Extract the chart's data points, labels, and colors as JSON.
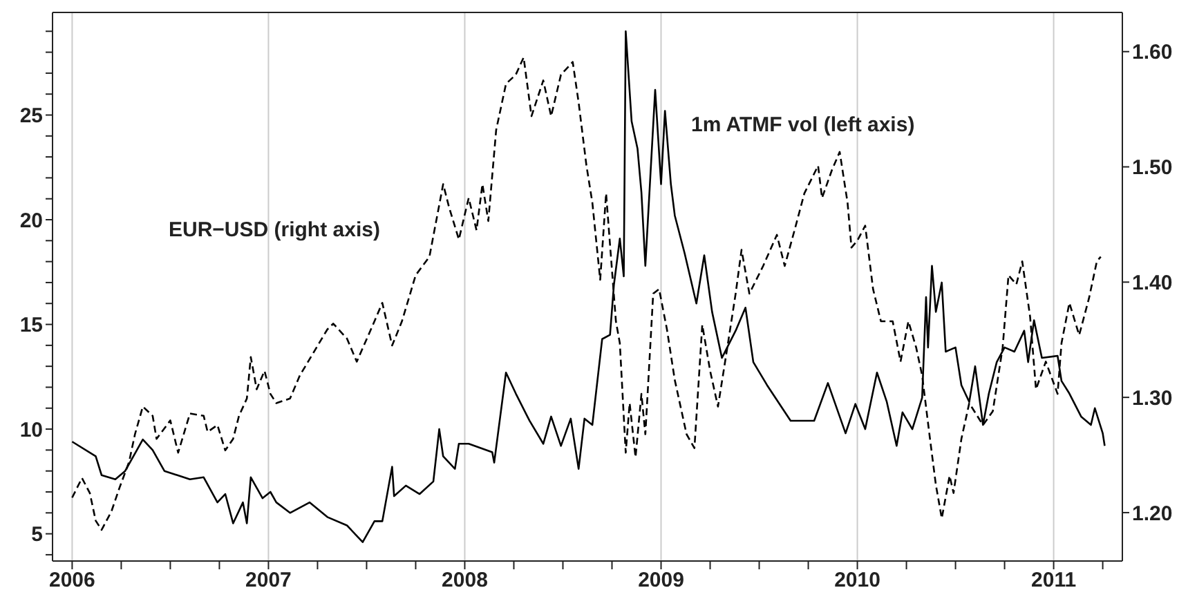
{
  "chart_data": {
    "type": "line",
    "xlim": [
      2005.9,
      2011.35
    ],
    "ylim": [
      3.7,
      29.9
    ],
    "y2lim": [
      1.158,
      1.634
    ],
    "xticks": [
      2006,
      {
        "value": 2006.25,
        "label": null
      },
      {
        "value": 2006.5,
        "label": null
      },
      {
        "value": 2006.75,
        "label": null
      },
      2007,
      {
        "value": 2007.25,
        "label": null
      },
      {
        "value": 2007.5,
        "label": null
      },
      {
        "value": 2007.75,
        "label": null
      },
      2008,
      {
        "value": 2008.25,
        "label": null
      },
      {
        "value": 2008.5,
        "label": null
      },
      {
        "value": 2008.75,
        "label": null
      },
      2009,
      {
        "value": 2009.25,
        "label": null
      },
      {
        "value": 2009.5,
        "label": null
      },
      {
        "value": 2009.75,
        "label": null
      },
      2010,
      {
        "value": 2010.25,
        "label": null
      },
      {
        "value": 2010.5,
        "label": null
      },
      {
        "value": 2010.75,
        "label": null
      },
      2011,
      {
        "value": 2011.25,
        "label": null
      }
    ],
    "yticks": [
      {
        "value": 4,
        "label": null
      },
      5,
      {
        "value": 6,
        "label": null
      },
      {
        "value": 7,
        "label": null
      },
      {
        "value": 8,
        "label": null
      },
      {
        "value": 9,
        "label": null
      },
      10,
      {
        "value": 11,
        "label": null
      },
      {
        "value": 12,
        "label": null
      },
      {
        "value": 13,
        "label": null
      },
      {
        "value": 14,
        "label": null
      },
      15,
      {
        "value": 16,
        "label": null
      },
      {
        "value": 17,
        "label": null
      },
      {
        "value": 18,
        "label": null
      },
      {
        "value": 19,
        "label": null
      },
      20,
      {
        "value": 21,
        "label": null
      },
      {
        "value": 22,
        "label": null
      },
      {
        "value": 23,
        "label": null
      },
      {
        "value": 24,
        "label": null
      },
      25,
      {
        "value": 26,
        "label": null
      },
      {
        "value": 27,
        "label": null
      },
      {
        "value": 28,
        "label": null
      },
      {
        "value": 29,
        "label": null
      }
    ],
    "y2ticks": [
      {
        "value": 1.2,
        "label": "1.20"
      },
      {
        "value": 1.3,
        "label": "1.30"
      },
      {
        "value": 1.4,
        "label": "1.40"
      },
      {
        "value": 1.5,
        "label": "1.50"
      },
      {
        "value": 1.6,
        "label": "1.60"
      }
    ],
    "grid": "x",
    "marker": "none",
    "series": [
      {
        "name": "1m ATMF vol (left axis)",
        "color": "#000000",
        "line_style": "solid",
        "x": [
          2006.0,
          2006.12,
          2006.15,
          2006.22,
          2006.27,
          2006.36,
          2006.41,
          2006.47,
          2006.6,
          2006.67,
          2006.74,
          2006.78,
          2006.82,
          2006.87,
          2006.89,
          2006.91,
          2006.97,
          2007.01,
          2007.04,
          2007.11,
          2007.21,
          2007.3,
          2007.4,
          2007.48,
          2007.54,
          2007.58,
          2007.63,
          2007.64,
          2007.7,
          2007.77,
          2007.84,
          2007.87,
          2007.89,
          2007.95,
          2007.97,
          2008.02,
          2008.14,
          2008.15,
          2008.21,
          2008.26,
          2008.33,
          2008.4,
          2008.44,
          2008.49,
          2008.54,
          2008.58,
          2008.61,
          2008.65,
          2008.7,
          2008.74,
          2008.76,
          2008.79,
          2008.81,
          2008.82,
          2008.85,
          2008.88,
          2008.9,
          2008.92,
          2008.97,
          2009.0,
          2009.02,
          2009.05,
          2009.07,
          2009.12,
          2009.18,
          2009.22,
          2009.26,
          2009.31,
          2009.38,
          2009.43,
          2009.47,
          2009.54,
          2009.66,
          2009.78,
          2009.85,
          2009.94,
          2009.99,
          2010.04,
          2010.1,
          2010.15,
          2010.2,
          2010.23,
          2010.28,
          2010.33,
          2010.35,
          2010.36,
          2010.38,
          2010.4,
          2010.43,
          2010.45,
          2010.5,
          2010.53,
          2010.57,
          2010.6,
          2010.64,
          2010.67,
          2010.71,
          2010.75,
          2010.8,
          2010.85,
          2010.87,
          2010.9,
          2010.94,
          2011.02,
          2011.04,
          2011.08,
          2011.14,
          2011.19,
          2011.21,
          2011.25,
          2011.26
        ],
        "values": [
          9.4,
          8.7,
          7.8,
          7.6,
          8.0,
          9.5,
          9.0,
          8.0,
          7.6,
          7.7,
          6.5,
          6.9,
          5.5,
          6.5,
          5.5,
          7.7,
          6.7,
          7.0,
          6.5,
          6.0,
          6.5,
          5.8,
          5.4,
          4.6,
          5.6,
          5.6,
          8.2,
          6.8,
          7.3,
          6.9,
          7.5,
          10.0,
          8.7,
          8.1,
          9.3,
          9.3,
          8.9,
          8.4,
          12.7,
          11.7,
          10.4,
          9.3,
          10.6,
          9.2,
          10.5,
          8.1,
          10.5,
          10.2,
          14.3,
          14.5,
          16.9,
          19.1,
          17.3,
          29.0,
          24.7,
          23.4,
          21.3,
          17.8,
          26.2,
          21.7,
          25.2,
          21.7,
          20.2,
          18.4,
          16.0,
          18.3,
          15.6,
          13.4,
          14.7,
          15.8,
          13.2,
          12.1,
          10.4,
          10.4,
          12.2,
          9.8,
          11.2,
          10.0,
          12.7,
          11.3,
          9.2,
          10.8,
          10.0,
          11.5,
          16.3,
          13.9,
          17.8,
          15.6,
          17.0,
          13.7,
          13.9,
          12.1,
          11.3,
          13.0,
          10.2,
          11.7,
          13.2,
          13.9,
          13.7,
          14.7,
          13.2,
          15.2,
          13.4,
          13.5,
          12.3,
          11.7,
          10.6,
          10.2,
          11.0,
          9.8,
          9.2
        ]
      },
      {
        "name": "EUR−USD (right axis)",
        "color": "#000000",
        "line_style": "dashed",
        "axis": "y2",
        "x": [
          2006.0,
          2006.05,
          2006.09,
          2006.12,
          2006.15,
          2006.2,
          2006.24,
          2006.29,
          2006.32,
          2006.36,
          2006.41,
          2006.43,
          2006.5,
          2006.54,
          2006.6,
          2006.67,
          2006.69,
          2006.74,
          2006.78,
          2006.82,
          2006.85,
          2006.89,
          2006.91,
          2006.94,
          2006.98,
          2007.01,
          2007.04,
          2007.11,
          2007.16,
          2007.23,
          2007.3,
          2007.33,
          2007.4,
          2007.45,
          2007.54,
          2007.58,
          2007.63,
          2007.68,
          2007.75,
          2007.82,
          2007.89,
          2007.92,
          2007.97,
          2008.02,
          2008.06,
          2008.09,
          2008.12,
          2008.16,
          2008.21,
          2008.26,
          2008.3,
          2008.34,
          2008.4,
          2008.44,
          2008.49,
          2008.55,
          2008.58,
          2008.62,
          2008.65,
          2008.69,
          2008.72,
          2008.77,
          2008.79,
          2008.82,
          2008.84,
          2008.87,
          2008.9,
          2008.92,
          2008.96,
          2008.99,
          2009.03,
          2009.07,
          2009.13,
          2009.17,
          2009.21,
          2009.25,
          2009.29,
          2009.33,
          2009.38,
          2009.41,
          2009.45,
          2009.52,
          2009.59,
          2009.63,
          2009.68,
          2009.73,
          2009.8,
          2009.82,
          2009.87,
          2009.91,
          2009.95,
          2009.97,
          2010.0,
          2010.04,
          2010.08,
          2010.12,
          2010.18,
          2010.22,
          2010.26,
          2010.3,
          2010.33,
          2010.37,
          2010.4,
          2010.43,
          2010.47,
          2010.49,
          2010.53,
          2010.57,
          2010.64,
          2010.69,
          2010.74,
          2010.77,
          2010.81,
          2010.84,
          2010.88,
          2010.91,
          2010.96,
          2011.02,
          2011.04,
          2011.08,
          2011.13,
          2011.18,
          2011.22,
          2011.24
        ],
        "values": [
          1.213,
          1.23,
          1.217,
          1.193,
          1.185,
          1.201,
          1.221,
          1.244,
          1.268,
          1.292,
          1.284,
          1.264,
          1.28,
          1.252,
          1.286,
          1.284,
          1.27,
          1.276,
          1.254,
          1.264,
          1.284,
          1.299,
          1.335,
          1.307,
          1.323,
          1.303,
          1.295,
          1.299,
          1.319,
          1.339,
          1.359,
          1.364,
          1.351,
          1.331,
          1.366,
          1.382,
          1.345,
          1.366,
          1.406,
          1.422,
          1.485,
          1.465,
          1.437,
          1.473,
          1.445,
          1.485,
          1.453,
          1.532,
          1.572,
          1.58,
          1.595,
          1.544,
          1.575,
          1.544,
          1.58,
          1.591,
          1.556,
          1.501,
          1.469,
          1.402,
          1.477,
          1.366,
          1.347,
          1.252,
          1.295,
          1.248,
          1.303,
          1.268,
          1.39,
          1.394,
          1.359,
          1.315,
          1.268,
          1.256,
          1.363,
          1.323,
          1.292,
          1.335,
          1.39,
          1.428,
          1.39,
          1.414,
          1.441,
          1.414,
          1.445,
          1.477,
          1.501,
          1.473,
          1.497,
          1.513,
          1.469,
          1.43,
          1.436,
          1.449,
          1.394,
          1.366,
          1.366,
          1.331,
          1.366,
          1.343,
          1.319,
          1.264,
          1.224,
          1.195,
          1.232,
          1.217,
          1.264,
          1.295,
          1.276,
          1.288,
          1.343,
          1.406,
          1.398,
          1.418,
          1.37,
          1.307,
          1.331,
          1.303,
          1.347,
          1.382,
          1.354,
          1.386,
          1.418,
          1.422
        ]
      }
    ]
  }
}
